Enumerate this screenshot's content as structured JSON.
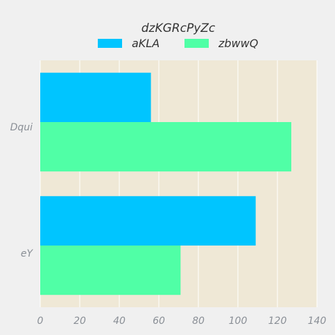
{
  "chart_data": {
    "type": "bar",
    "orientation": "horizontal",
    "title": "dzKGRcPyZc",
    "categories": [
      "Dqui",
      "eY"
    ],
    "series": [
      {
        "name": "aKLA",
        "values": [
          56,
          109
        ],
        "color": "#00c5ff"
      },
      {
        "name": "zbwwQ",
        "values": [
          127,
          71
        ],
        "color": "#50ffa6"
      }
    ],
    "xlim": [
      0,
      140
    ],
    "x_ticks": [
      0,
      20,
      40,
      60,
      80,
      100,
      120,
      140
    ],
    "grid": true,
    "legend": "top-center",
    "plot_background": "#efe8d6"
  }
}
